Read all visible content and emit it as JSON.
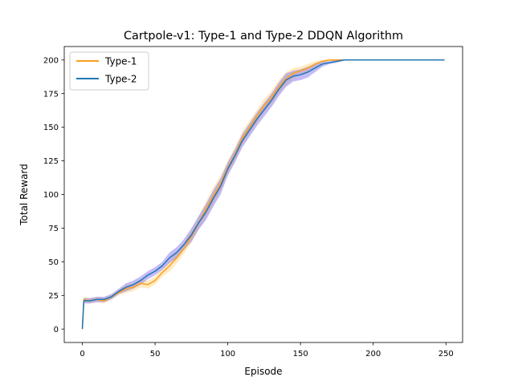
{
  "chart_data": {
    "type": "line",
    "title": "Cartpole-v1: Type-1 and Type-2 DDQN Algorithm",
    "xlabel": "Episode",
    "ylabel": "Total Reward",
    "xlim": [
      -12.45,
      261.45
    ],
    "ylim": [
      -10,
      210
    ],
    "xticks": [
      0,
      50,
      100,
      150,
      200,
      250
    ],
    "yticks": [
      0,
      25,
      50,
      75,
      100,
      125,
      150,
      175,
      200
    ],
    "grid": false,
    "legend_position": "top-left",
    "series": [
      {
        "name": "Type-1",
        "color": "#ff9f1c",
        "band_color": "#ffd27a",
        "x": [
          0,
          1,
          5,
          10,
          15,
          20,
          25,
          30,
          35,
          40,
          45,
          50,
          55,
          60,
          65,
          70,
          75,
          80,
          85,
          90,
          95,
          100,
          105,
          110,
          115,
          120,
          125,
          130,
          135,
          140,
          145,
          150,
          155,
          160,
          165,
          170,
          175,
          180,
          190,
          200,
          210,
          220,
          230,
          240,
          249
        ],
        "y": [
          0,
          22,
          21,
          22,
          21,
          24,
          27,
          30,
          31,
          34,
          33,
          36,
          42,
          47,
          53,
          60,
          69,
          79,
          89,
          99,
          108,
          120,
          130,
          142,
          150,
          158,
          166,
          172,
          180,
          186,
          190,
          192,
          194,
          197,
          199,
          200,
          200,
          200,
          200,
          200,
          200,
          200,
          200,
          200,
          200
        ],
        "band": [
          1,
          2,
          2,
          2,
          2,
          2,
          2,
          3,
          3,
          3,
          3,
          3,
          3,
          4,
          4,
          4,
          5,
          5,
          6,
          6,
          6,
          5,
          5,
          5,
          5,
          5,
          5,
          5,
          5,
          5,
          4,
          3,
          3,
          2,
          1,
          1,
          0.5,
          0.5,
          0,
          0,
          0,
          0,
          0,
          0,
          0
        ]
      },
      {
        "name": "Type-2",
        "color": "#1f77b4",
        "band_color": "#7b68ee",
        "x": [
          0,
          1,
          5,
          10,
          15,
          20,
          25,
          30,
          35,
          40,
          45,
          50,
          55,
          60,
          65,
          70,
          75,
          80,
          85,
          90,
          95,
          100,
          105,
          110,
          115,
          120,
          125,
          130,
          135,
          140,
          145,
          150,
          155,
          160,
          165,
          170,
          175,
          180,
          190,
          200,
          210,
          220,
          230,
          240,
          249
        ],
        "y": [
          0,
          21,
          21,
          22,
          22,
          24,
          28,
          31,
          33,
          36,
          40,
          43,
          47,
          53,
          57,
          63,
          70,
          79,
          87,
          97,
          106,
          119,
          129,
          140,
          148,
          156,
          163,
          170,
          178,
          185,
          188,
          189,
          191,
          194,
          197,
          198,
          199,
          200,
          200,
          200,
          200,
          200,
          200,
          200,
          200
        ],
        "band": [
          1,
          2,
          2,
          2,
          2,
          2,
          2,
          3,
          3,
          3,
          3,
          3,
          3,
          4,
          4,
          4,
          5,
          5,
          6,
          6,
          6,
          5,
          5,
          5,
          5,
          5,
          5,
          5,
          5,
          5,
          4,
          4,
          4,
          3,
          2,
          1,
          1,
          0.5,
          0,
          0,
          0,
          0,
          0,
          0,
          0
        ]
      }
    ]
  }
}
